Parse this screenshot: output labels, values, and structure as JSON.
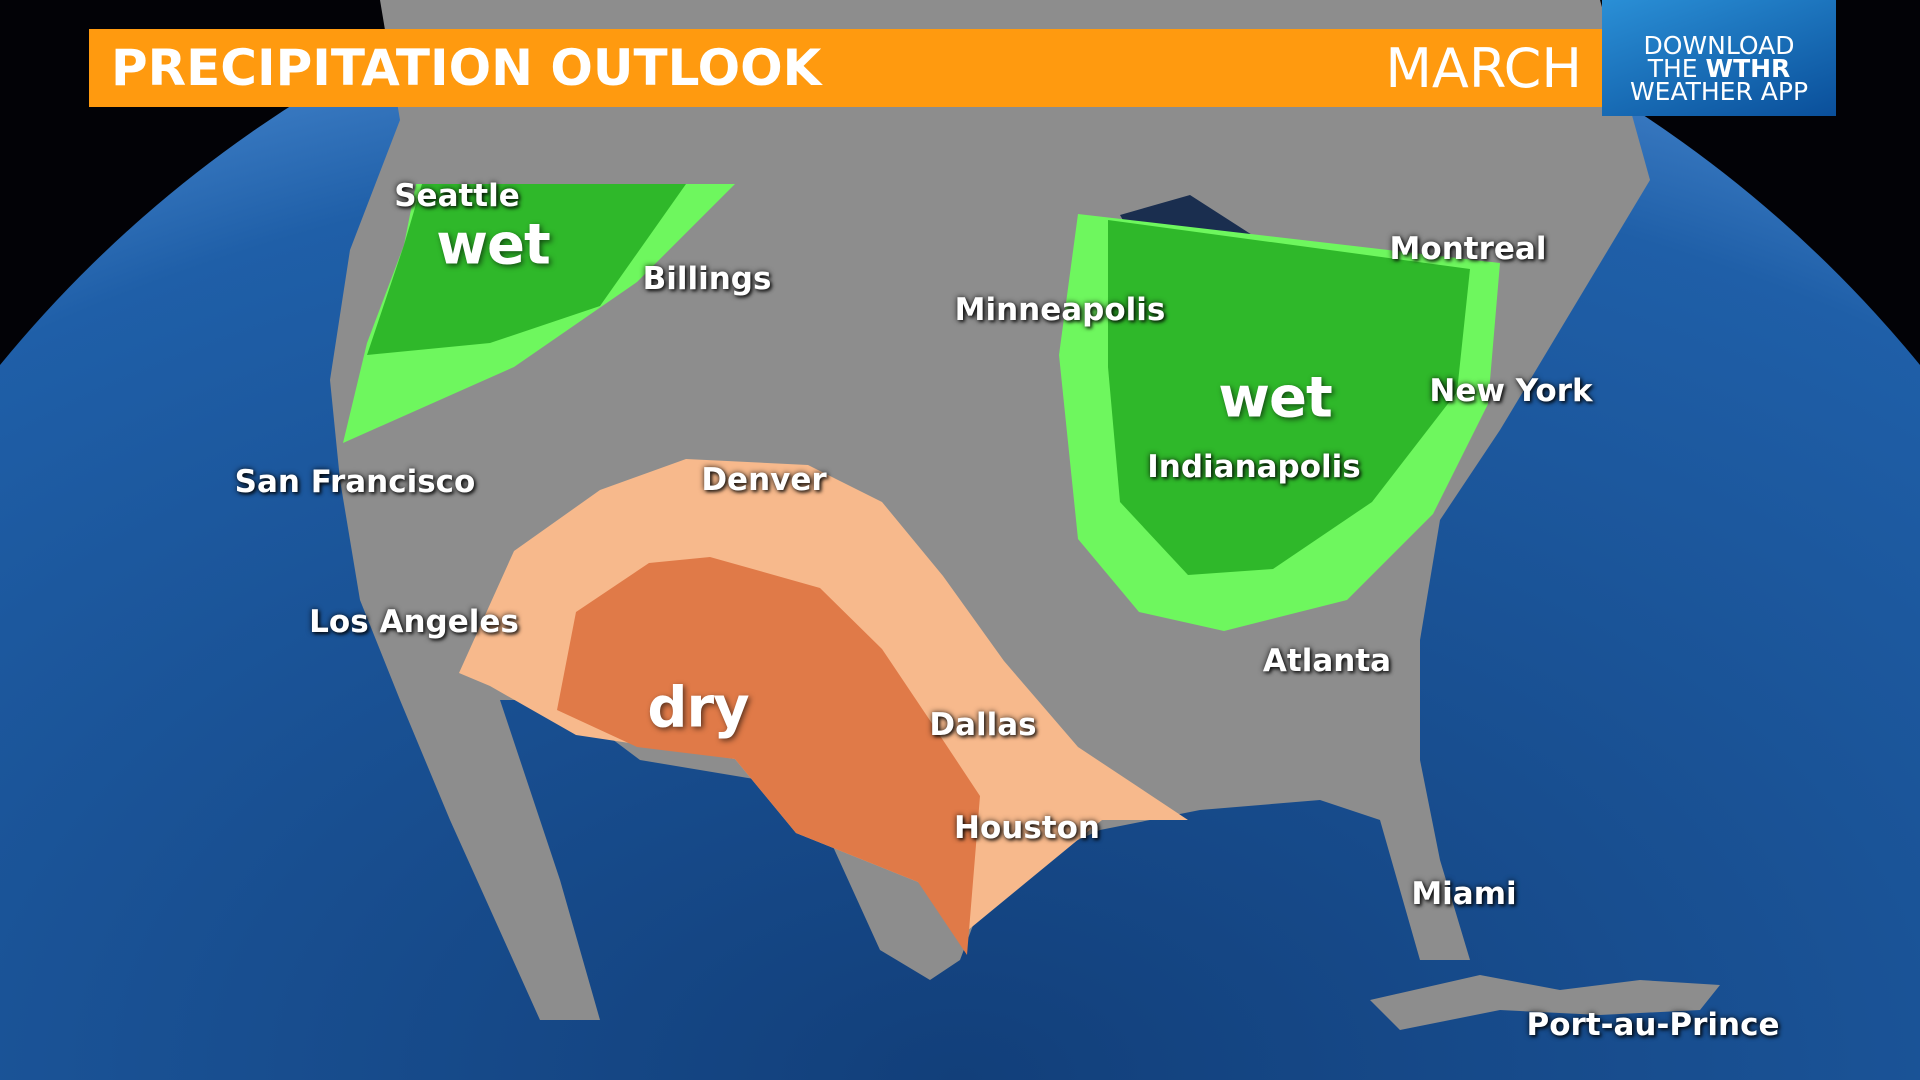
{
  "header": {
    "title": "PRECIPITATION OUTLOOK",
    "month": "MARCH"
  },
  "badge": {
    "line1": "DOWNLOAD",
    "line2_prefix": "THE ",
    "line2_brand": "WTHR",
    "line3": "WEATHER APP"
  },
  "colors": {
    "header": "#ff9a0f",
    "wet_light": "#6ef75e",
    "wet_dark": "#2fb82a",
    "dry_light": "#f7b98c",
    "dry_dark": "#e07a48",
    "ocean": "#1f5fa8"
  },
  "regions": {
    "wet_west": "wet",
    "wet_east": "wet",
    "dry_southwest": "dry"
  },
  "cities": [
    "Seattle",
    "Billings",
    "Minneapolis",
    "Montreal",
    "New York",
    "Indianapolis",
    "San Francisco",
    "Denver",
    "Los Angeles",
    "Atlanta",
    "Dallas",
    "Houston",
    "Miami",
    "Port-au-Prince"
  ]
}
